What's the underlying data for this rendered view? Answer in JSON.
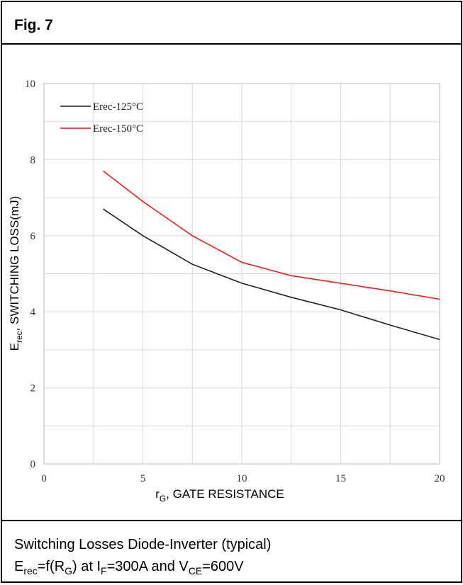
{
  "header": {
    "title": "Fig. 7"
  },
  "chart_data": {
    "type": "line",
    "xlabel": [
      "r",
      "G",
      ", GATE RESISTANCE"
    ],
    "ylabel": [
      "E",
      "rec",
      ", SWITCHING LOSS(mJ)"
    ],
    "xlim": [
      0,
      20
    ],
    "xticks": [
      0,
      5,
      10,
      15,
      20
    ],
    "ylim": [
      0,
      10
    ],
    "yticks": [
      0,
      2,
      4,
      6,
      8,
      10
    ],
    "x_minor_ticks": [
      2.5,
      7.5,
      12.5,
      17.5
    ],
    "y_minor_ticks": [
      1,
      3,
      5,
      7,
      9
    ],
    "grid": true,
    "legend": "upper left",
    "x": [
      3,
      5,
      7.5,
      10,
      12.5,
      15,
      17.5,
      20
    ],
    "series": [
      {
        "name": "Erec-125°C",
        "color": "#231f20",
        "values": [
          6.7,
          6.0,
          5.25,
          4.75,
          4.38,
          4.05,
          3.65,
          3.27
        ]
      },
      {
        "name": "Erec-150°C",
        "color": "#e8211e",
        "values": [
          7.7,
          6.9,
          6.0,
          5.3,
          4.95,
          4.75,
          4.55,
          4.33
        ]
      }
    ]
  },
  "caption": {
    "line1": "Switching Losses Diode-Inverter (typical)",
    "line2": [
      "E",
      "rec",
      "=f(R",
      "G",
      ") at I",
      "F",
      "=300A and V",
      "CE",
      "=600V"
    ]
  }
}
